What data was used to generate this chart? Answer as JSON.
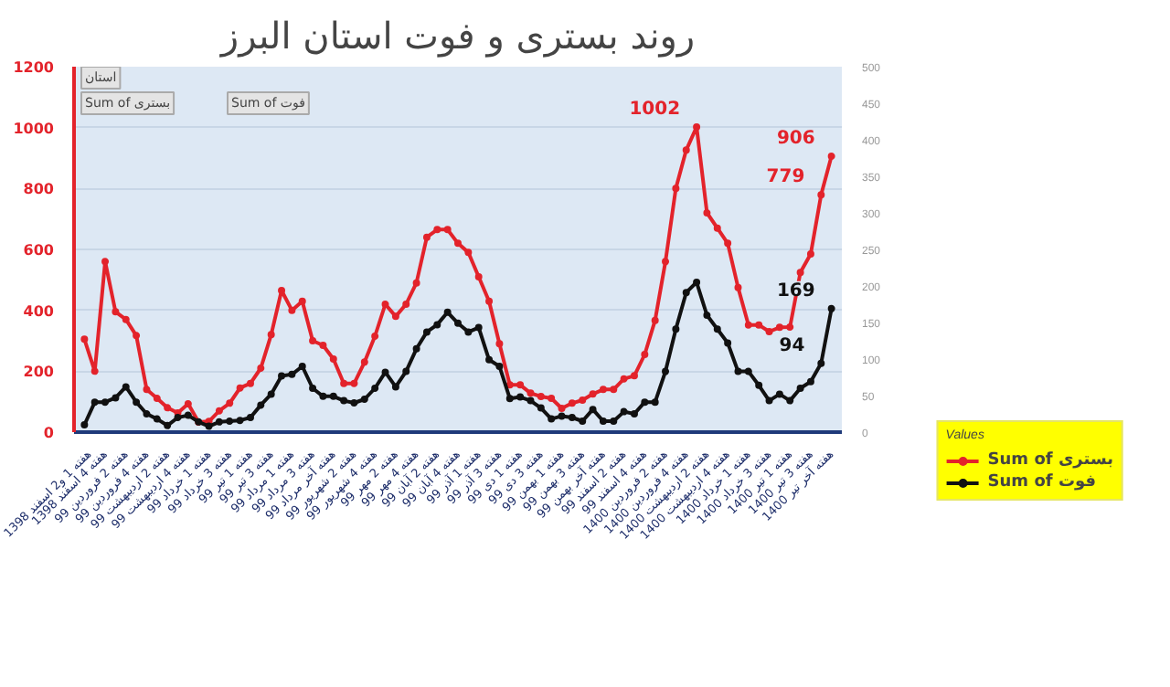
{
  "chart_data": {
    "type": "line",
    "title": "روند بستری و فوت استان البرز",
    "categories": [
      "هفته 1 و2 اسفند 1398",
      null,
      "هفته 4 اسفند 1398",
      null,
      "هفته 2 فروردین 99",
      null,
      "هفته 4 فروردین 99",
      null,
      "هفته 2 اردیبهشت 99",
      null,
      "هفته 4 اردیبهشت 99",
      null,
      "هفته 1 خرداد 99",
      null,
      "هفته 3 خرداد 99",
      null,
      "هفته 1 تیر 99",
      null,
      "هفته 3 تیر 99",
      null,
      "هفته 1 مرداد 99",
      null,
      "هفته 3 مرداد 99",
      null,
      "هفته آخر مرداد 99",
      null,
      "هفته 2 شهریور 99",
      null,
      "هفته 4 شهریور 99",
      null,
      "هفته 2 مهر 99",
      null,
      "هفته 4 مهر 99",
      null,
      "هفته 2 آبان 99",
      null,
      "هفته 4 آبان 99",
      null,
      "هفته 1 آذر 99",
      null,
      "هفته 3 آذر 99",
      null,
      "هفته 1 دی 99",
      null,
      "هفته 3 دی 99",
      null,
      "هفته 1 بهمن 99",
      null,
      "هفته 3 بهمن 99",
      null,
      "هفته آخر بهمن 99",
      null,
      "هفته 2 اسفند 99",
      null,
      "هفته 4 اسفند 99",
      null,
      "هفته 2 فروردین 1400",
      null,
      "هفته 4 فروردین 1400",
      null,
      "هفته 2 اردیبهشت 1400",
      null,
      "هفته 4 اردیبهشت 1400",
      null,
      "هفته 1 خرداد 1400",
      null,
      "هفته 3 خرداد 1400",
      null,
      "هفته 1 تیر 1400",
      null,
      "هفته 3 تیر 1400",
      null,
      "هفته آخر تیر 1400"
    ],
    "series": [
      {
        "name": "Sum of بستری",
        "color": "#e3232b",
        "values": [
          305,
          200,
          560,
          395,
          370,
          317,
          140,
          111,
          80,
          63,
          93,
          33,
          35,
          70,
          95,
          145,
          160,
          210,
          320,
          465,
          400,
          430,
          300,
          285,
          240,
          160,
          160,
          230,
          315,
          420,
          380,
          420,
          490,
          640,
          665,
          665,
          620,
          590,
          510,
          430,
          290,
          155,
          155,
          128,
          117,
          111,
          78,
          95,
          105,
          125,
          140,
          140,
          175,
          185,
          255,
          367,
          560,
          800,
          926,
          1002,
          720,
          670,
          620,
          475,
          352,
          352,
          330,
          344,
          345,
          524,
          585,
          779,
          906
        ],
        "value_labels": [
          null,
          null,
          null,
          null,
          null,
          null,
          null,
          null,
          null,
          null,
          null,
          null,
          null,
          null,
          null,
          null,
          null,
          null,
          null,
          null,
          null,
          null,
          null,
          null,
          null,
          null,
          null,
          null,
          null,
          null,
          null,
          null,
          null,
          null,
          null,
          null,
          null,
          null,
          null,
          null,
          null,
          null,
          null,
          null,
          null,
          null,
          null,
          null,
          null,
          null,
          null,
          null,
          null,
          null,
          null,
          null,
          null,
          null,
          null,
          "1002",
          null,
          null,
          null,
          null,
          null,
          null,
          null,
          null,
          null,
          null,
          null,
          "779",
          "906"
        ]
      },
      {
        "name": "Sum of فوت",
        "color": "#111111",
        "axis": "y2",
        "values": [
          10,
          41,
          41,
          47,
          62,
          41,
          25,
          18,
          9,
          20,
          23,
          14,
          8,
          14,
          15,
          16,
          20,
          37,
          52,
          77,
          79,
          90,
          60,
          49,
          49,
          43,
          40,
          45,
          60,
          82,
          62,
          83,
          114,
          137,
          147,
          164,
          149,
          137,
          143,
          99,
          90,
          46,
          48,
          43,
          33,
          18,
          22,
          20,
          15,
          31,
          15,
          15,
          28,
          25,
          41,
          41,
          83,
          141,
          191,
          205,
          160,
          141,
          122,
          83,
          83,
          64,
          43,
          52,
          43,
          60,
          69,
          94,
          169
        ],
        "value_labels": [
          null,
          null,
          null,
          null,
          null,
          null,
          null,
          null,
          null,
          null,
          null,
          null,
          null,
          null,
          null,
          null,
          null,
          null,
          null,
          null,
          null,
          null,
          null,
          null,
          null,
          null,
          null,
          null,
          null,
          null,
          null,
          null,
          null,
          null,
          null,
          null,
          null,
          null,
          null,
          null,
          null,
          null,
          null,
          null,
          null,
          null,
          null,
          null,
          null,
          null,
          null,
          null,
          null,
          null,
          null,
          null,
          null,
          null,
          null,
          null,
          null,
          null,
          null,
          null,
          null,
          null,
          null,
          null,
          null,
          null,
          null,
          "94",
          "169"
        ]
      }
    ],
    "ylim": [
      0,
      1200
    ],
    "yticks": [
      0,
      200,
      400,
      600,
      800,
      1000,
      1200
    ],
    "y2lim": [
      0,
      500
    ],
    "y2ticks": [
      0,
      50,
      100,
      150,
      200,
      250,
      300,
      350,
      400,
      450,
      500
    ],
    "grid": "y",
    "marker": "circle",
    "line_style": "solid",
    "legend": "bottom right",
    "legend_title": "Values",
    "annotations": [
      "استان",
      "Sum of بستری",
      "Sum of فوت"
    ]
  }
}
